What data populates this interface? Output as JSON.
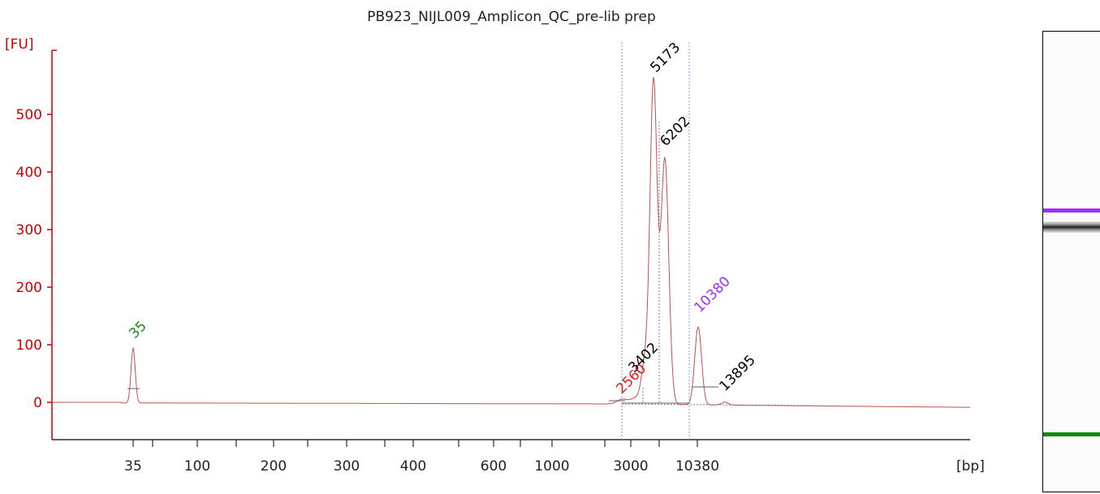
{
  "chart_data": {
    "type": "line",
    "title": "PB923_NIJL009_Amplicon_QC_pre-lib prep",
    "ylabel": "[FU]",
    "xlabel": "[bp]",
    "ylim": [
      -60,
      600
    ],
    "y_ticks": [
      0,
      100,
      200,
      300,
      400,
      500
    ],
    "x_ticks": [
      "35",
      "100",
      "200",
      "300",
      "400",
      "600",
      "1000",
      "3000",
      "10380"
    ],
    "peaks": [
      {
        "label": "35",
        "height": 95,
        "role": "lower marker",
        "color": "#1a8a1a"
      },
      {
        "label": "2560",
        "height": 8,
        "role": "region start",
        "color": "#e01b1b"
      },
      {
        "label": "3402",
        "height": 60,
        "role": "peak",
        "color": "#000000"
      },
      {
        "label": "5173",
        "height": 560,
        "role": "peak",
        "color": "#000000"
      },
      {
        "label": "6202",
        "height": 425,
        "role": "peak",
        "color": "#000000"
      },
      {
        "label": "10380",
        "height": 135,
        "role": "upper marker",
        "color": "#9b30ff"
      },
      {
        "label": "13895",
        "height": 5,
        "role": "peak",
        "color": "#000000"
      }
    ],
    "colors": {
      "trace": "#c0504d",
      "axis": "#cc0000",
      "lower_marker": "#1a8a1a",
      "upper_marker": "#9b30ff",
      "region_line": "#8c8cf0"
    },
    "grid": false,
    "gel_bands": [
      {
        "name": "upper marker band",
        "color": "#9b30ff"
      },
      {
        "name": "sample band",
        "color": "#222222"
      },
      {
        "name": "lower marker band",
        "color": "#0a8a0a"
      }
    ]
  }
}
